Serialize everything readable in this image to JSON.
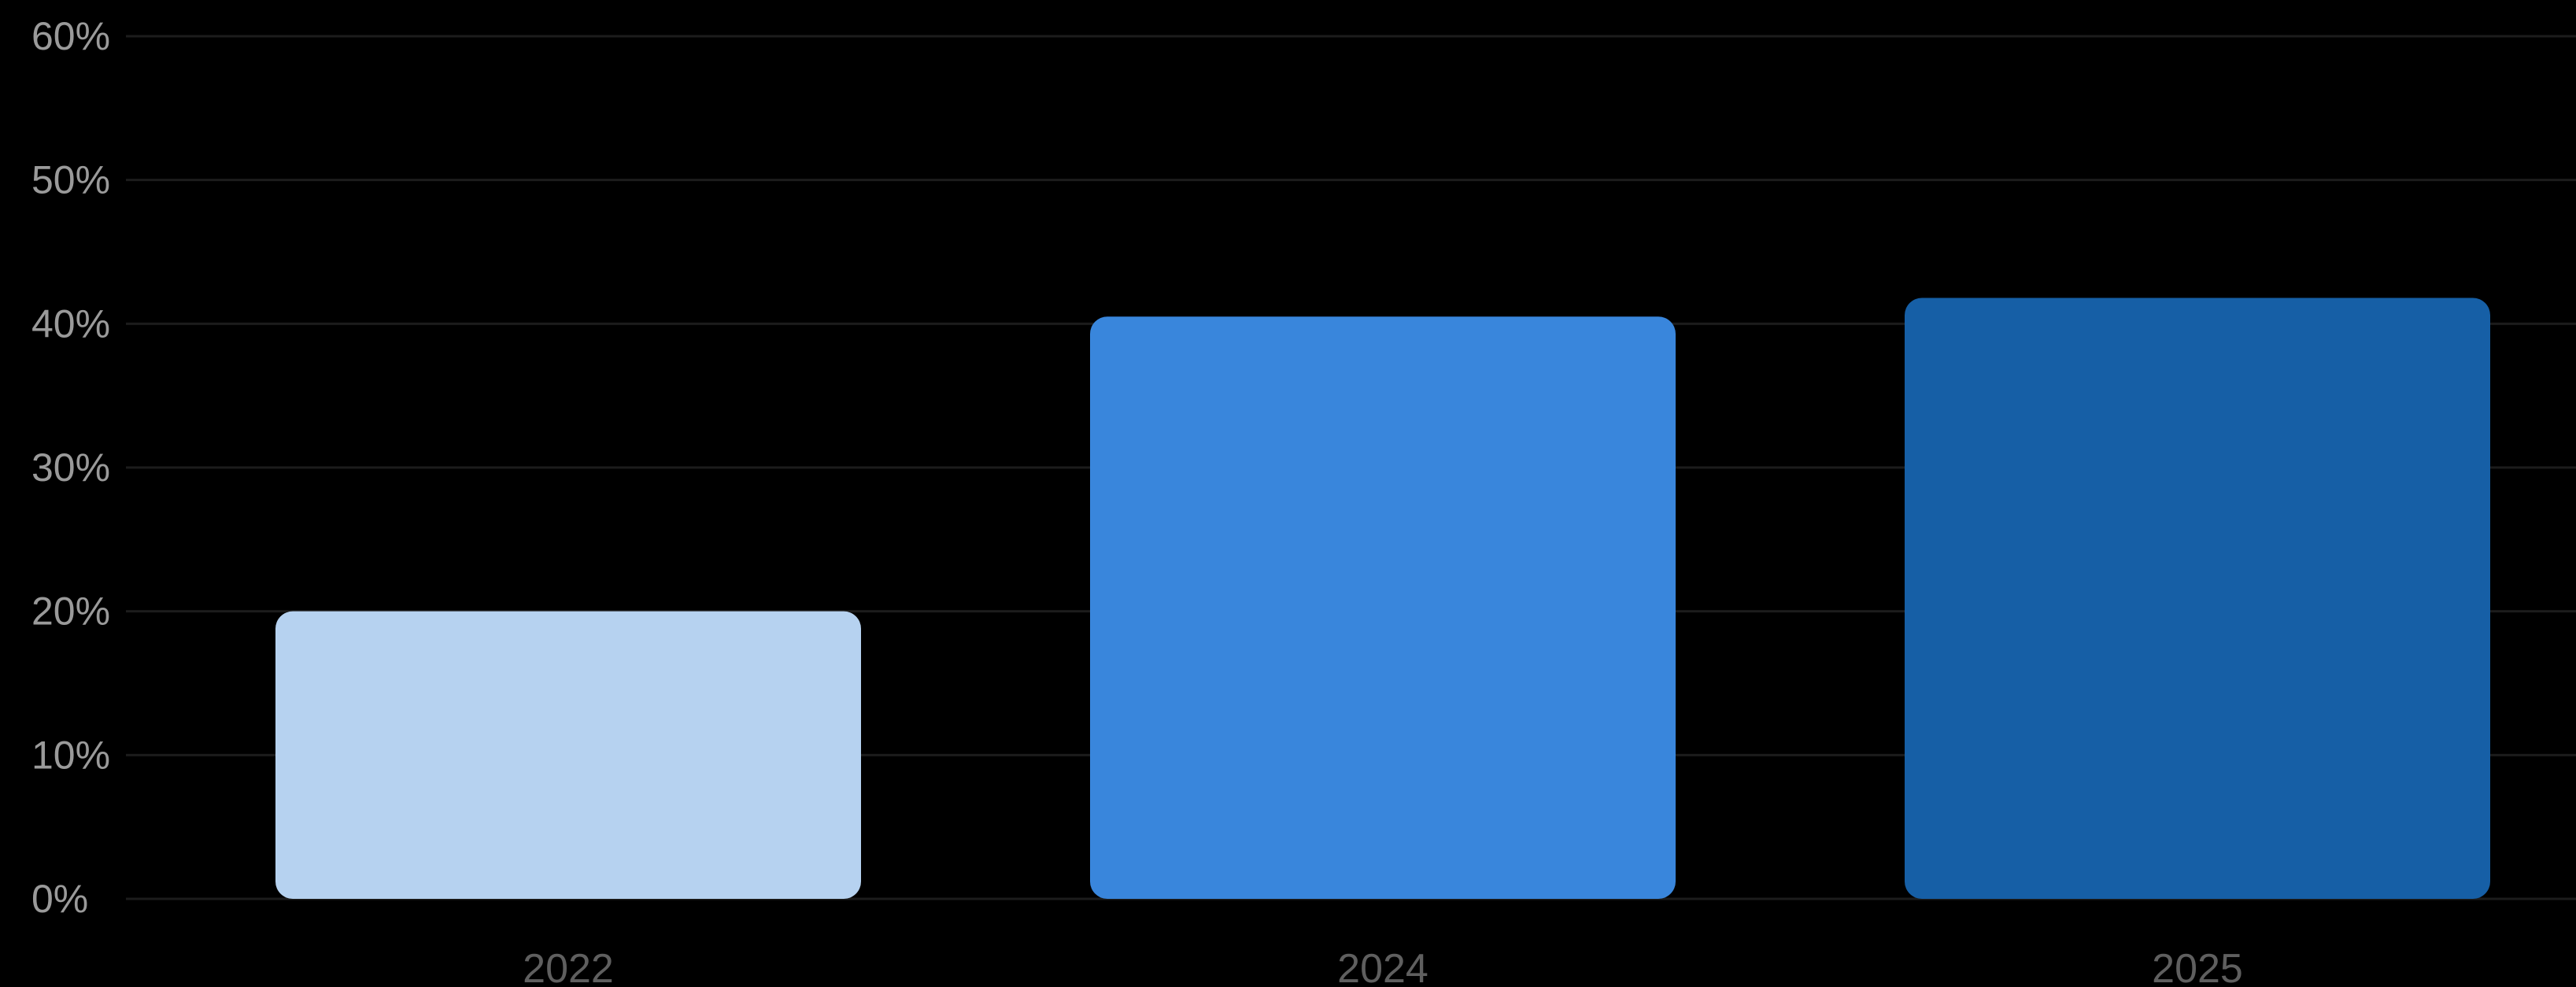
{
  "chart_data": {
    "type": "bar",
    "title": "",
    "xlabel": "",
    "ylabel": "",
    "categories": [
      "2022",
      "2024",
      "2025"
    ],
    "values": [
      20,
      40.5,
      41.8
    ],
    "ylim": [
      0,
      60
    ],
    "yticks": [
      0,
      10,
      20,
      30,
      40,
      50,
      60
    ],
    "ytick_labels": [
      "0%",
      "10%",
      "20%",
      "30%",
      "40%",
      "50%",
      "60%"
    ],
    "grid": true,
    "legend": "none",
    "colors": [
      "#b6d2f0",
      "#3986dc",
      "#165fa6"
    ]
  }
}
